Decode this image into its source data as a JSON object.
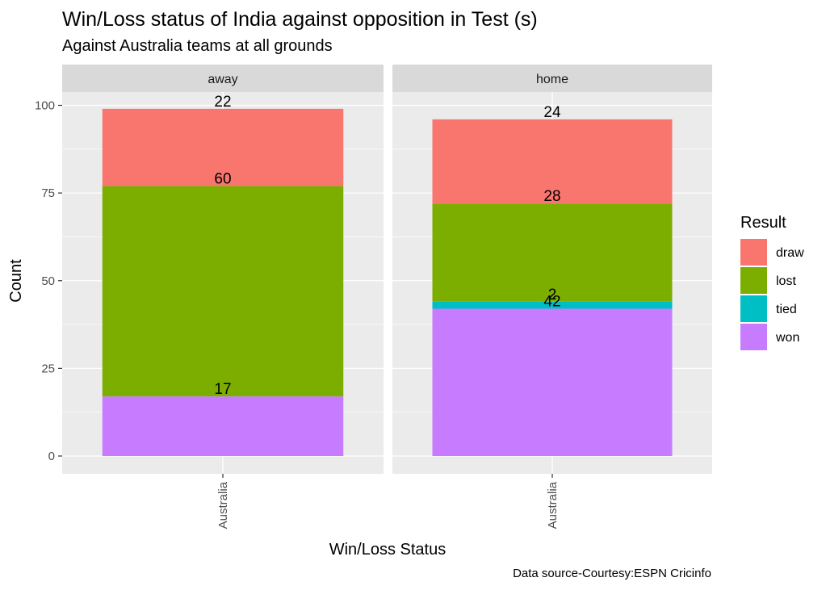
{
  "title": "Win/Loss status of India against opposition in Test (s)",
  "subtitle": "Against Australia  teams at all grounds",
  "caption": "Data source-Courtesy:ESPN Cricinfo",
  "colors": {
    "draw": "#F8766D",
    "lost": "#7CAE00",
    "tied": "#00BFC4",
    "won": "#C77CFF",
    "panel": "#EBEBEB",
    "strip": "#D9D9D9",
    "grid": "#FFFFFF"
  },
  "chart_data": {
    "type": "bar",
    "stacked": true,
    "facet_labels": [
      "away",
      "home"
    ],
    "categories": [
      "Australia"
    ],
    "xlabel": "Win/Loss Status",
    "ylabel": "Count",
    "ylim": [
      0,
      110
    ],
    "yticks": [
      0,
      25,
      50,
      75,
      100
    ],
    "grid": true,
    "legend": {
      "title": "Result",
      "position": "right",
      "entries": [
        "draw",
        "lost",
        "tied",
        "won"
      ]
    },
    "stack_order": [
      "won",
      "tied",
      "lost",
      "draw"
    ],
    "panels": [
      {
        "facet": "away",
        "category": "Australia",
        "segments": [
          {
            "result": "won",
            "value": 17,
            "label": "17"
          },
          {
            "result": "lost",
            "value": 60,
            "label": "60"
          },
          {
            "result": "draw",
            "value": 22,
            "label": "22"
          }
        ]
      },
      {
        "facet": "home",
        "category": "Australia",
        "segments": [
          {
            "result": "won",
            "value": 42,
            "label": "42"
          },
          {
            "result": "tied",
            "value": 2,
            "label": "2"
          },
          {
            "result": "lost",
            "value": 28,
            "label": "28"
          },
          {
            "result": "draw",
            "value": 24,
            "label": "24"
          }
        ]
      }
    ]
  }
}
